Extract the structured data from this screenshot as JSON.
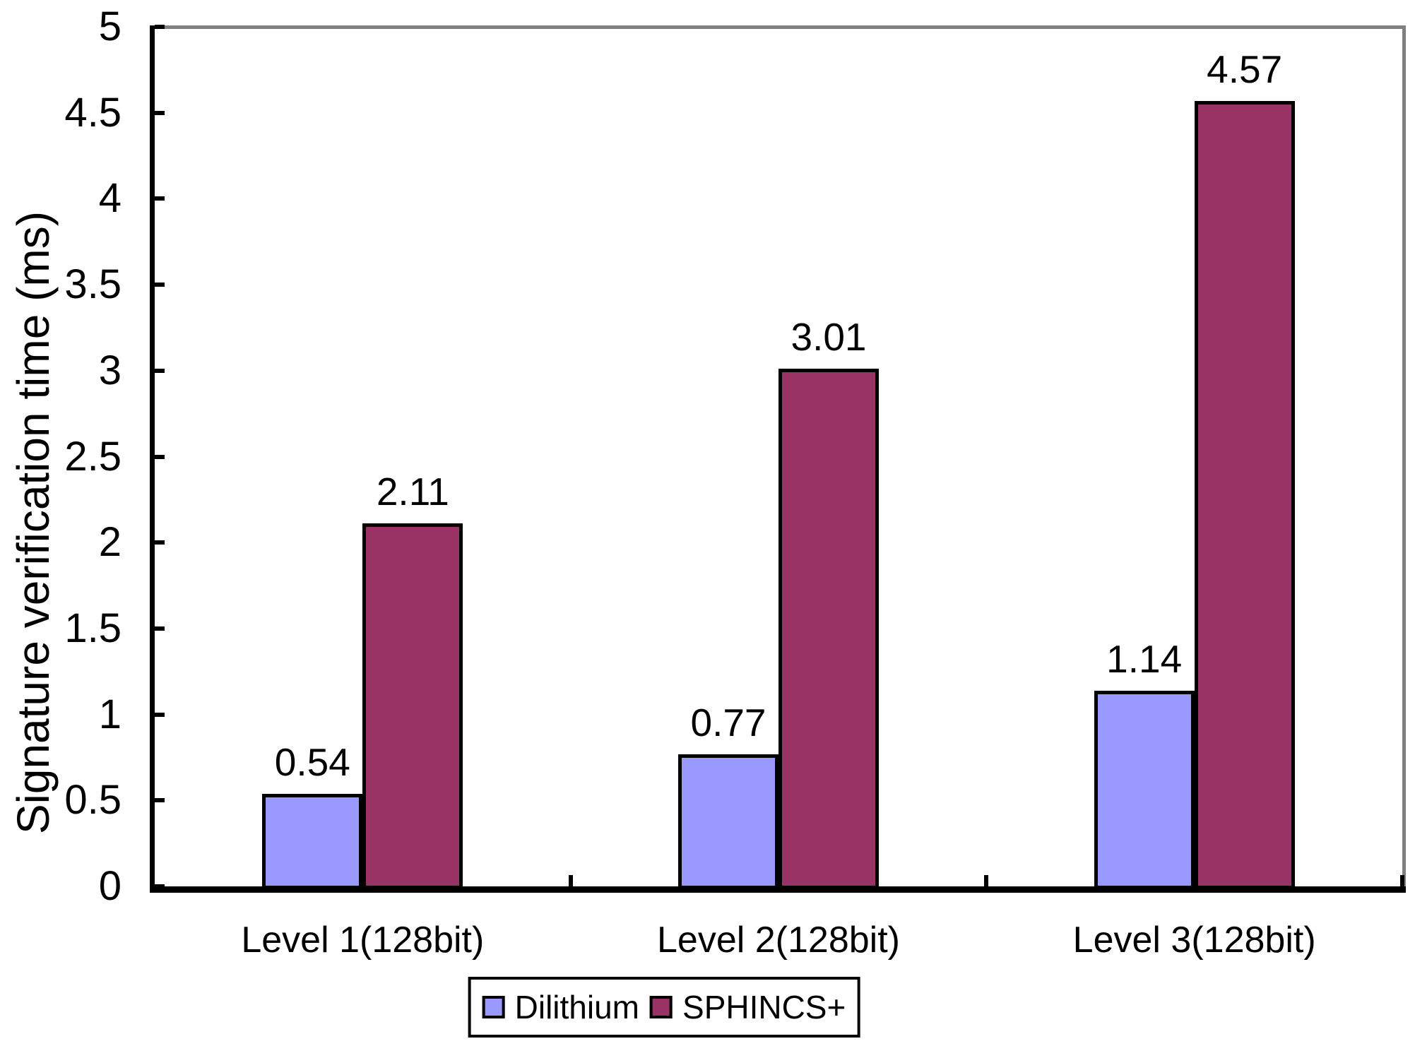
{
  "chart_data": {
    "type": "bar",
    "title": "",
    "ylabel": "Signature verification time (ms)",
    "xlabel": "",
    "categories": [
      "Level 1(128bit)",
      "Level 2(128bit)",
      "Level 3(128bit)"
    ],
    "series": [
      {
        "name": "Dilithium",
        "color": "#9999FF",
        "values": [
          0.54,
          0.77,
          1.14
        ],
        "value_labels": [
          "0.54",
          "0.77",
          "1.14"
        ]
      },
      {
        "name": "SPHINCS+",
        "color": "#993366",
        "values": [
          2.11,
          3.01,
          4.57
        ],
        "value_labels": [
          "2.11",
          "3.01",
          "4.57"
        ]
      }
    ],
    "ylim": [
      0,
      5
    ],
    "ytick_interval": 0.5,
    "ytick_labels": [
      "0",
      "0.5",
      "1",
      "1.5",
      "2",
      "2.5",
      "3",
      "3.5",
      "4",
      "4.5",
      "5"
    ],
    "grid": false,
    "data_labels": true,
    "legend_position": "bottom",
    "bar_border_color": "#000000",
    "axis_color": "#000000",
    "plot_border_color": "#808080",
    "background": "#FFFFFF"
  }
}
